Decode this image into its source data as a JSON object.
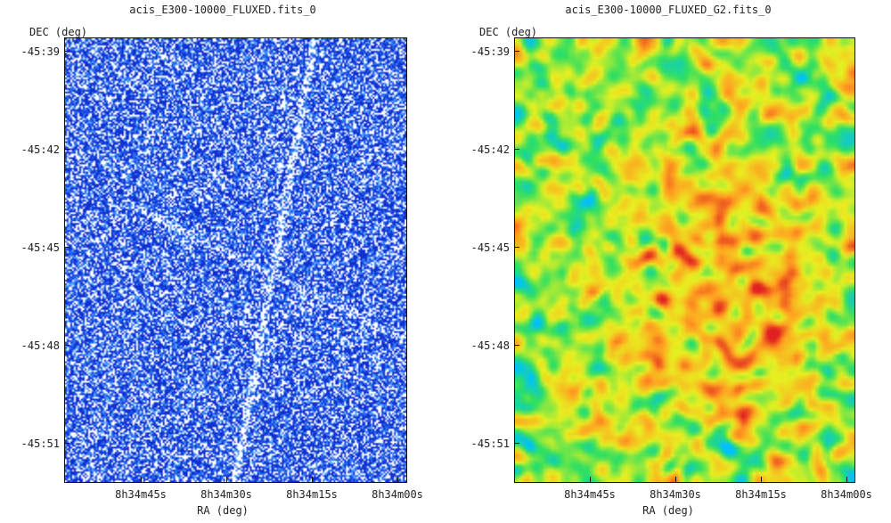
{
  "panels": [
    {
      "title": "acis_E300-10000_FLUXED.fits_0",
      "ylabel": "DEC  (deg)",
      "xlabel": "RA  (deg)",
      "yticks": [
        "-45:39",
        "-45:42",
        "-45:45",
        "-45:48",
        "-45:51"
      ],
      "xticks": [
        "8h34m45s",
        "8h34m30s",
        "8h34m15s",
        "8h34m00s"
      ],
      "colormap": "blue-white",
      "colors": [
        "#1030d0",
        "#2a6ef0",
        "#5aa8ff",
        "#ffffff"
      ]
    },
    {
      "title": "acis_E300-10000_FLUXED_G2.fits_0",
      "ylabel": "DEC  (deg)",
      "xlabel": "RA  (deg)",
      "yticks": [
        "-45:39",
        "-45:42",
        "-45:45",
        "-45:48",
        "-45:51"
      ],
      "xticks": [
        "8h34m45s",
        "8h34m30s",
        "8h34m15s",
        "8h34m00s"
      ],
      "colormap": "rainbow",
      "colors": [
        "#00c0ff",
        "#30e060",
        "#e8f020",
        "#ffa020",
        "#e02020"
      ]
    }
  ]
}
